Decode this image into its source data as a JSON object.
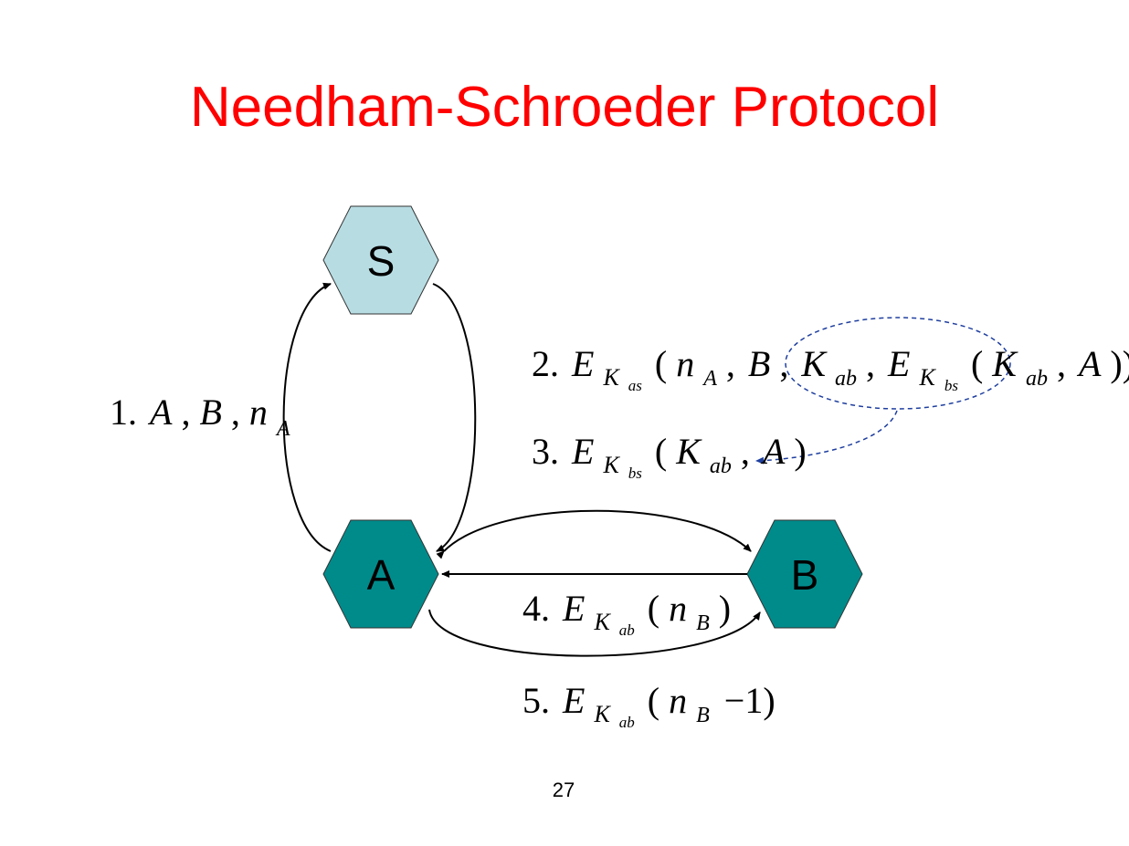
{
  "slide": {
    "title": "Needham-Schroeder Protocol",
    "page_number": "27"
  },
  "nodes": {
    "s": {
      "label": "S",
      "fill": "#b7dde3"
    },
    "a": {
      "label": "A",
      "fill": "#008b8b"
    },
    "b": {
      "label": "B",
      "fill": "#008b8b"
    }
  },
  "messages": {
    "m1": {
      "num": "1.",
      "A": "A",
      "comma1": ",",
      "B": "B",
      "comma2": ",",
      "n": "n",
      "n_sub": "A"
    },
    "m2": {
      "num": "2.",
      "E": "E",
      "K": "K",
      "K_sub": "as",
      "open": "(",
      "n": "n",
      "n_sub": "A",
      "c1": ",",
      "B": "B",
      "c2": ",",
      "K2": "K",
      "K2_sub": "ab",
      "c3": ",",
      "E2": "E",
      "K3": "K",
      "K3_sub": "bs",
      "open2": "(",
      "K4": "K",
      "K4_sub": "ab",
      "c4": ",",
      "A": "A",
      "close": "))"
    },
    "m3": {
      "num": "3.",
      "E": "E",
      "K": "K",
      "K_sub": "bs",
      "open": "(",
      "K2": "K",
      "K2_sub": "ab",
      "c1": ",",
      "A": "A",
      "close": ")"
    },
    "m4": {
      "num": "4.",
      "E": "E",
      "K": "K",
      "K_sub": "ab",
      "open": "(",
      "n": "n",
      "n_sub": "B",
      "close": ")"
    },
    "m5": {
      "num": "5.",
      "E": "E",
      "K": "K",
      "K_sub": "ab",
      "open": "(",
      "n": "n",
      "n_sub": "B",
      "minus": "−1)"
    }
  },
  "colors": {
    "title": "#ff0000",
    "arrow": "#000000",
    "dashed": "#1f3f9f"
  }
}
